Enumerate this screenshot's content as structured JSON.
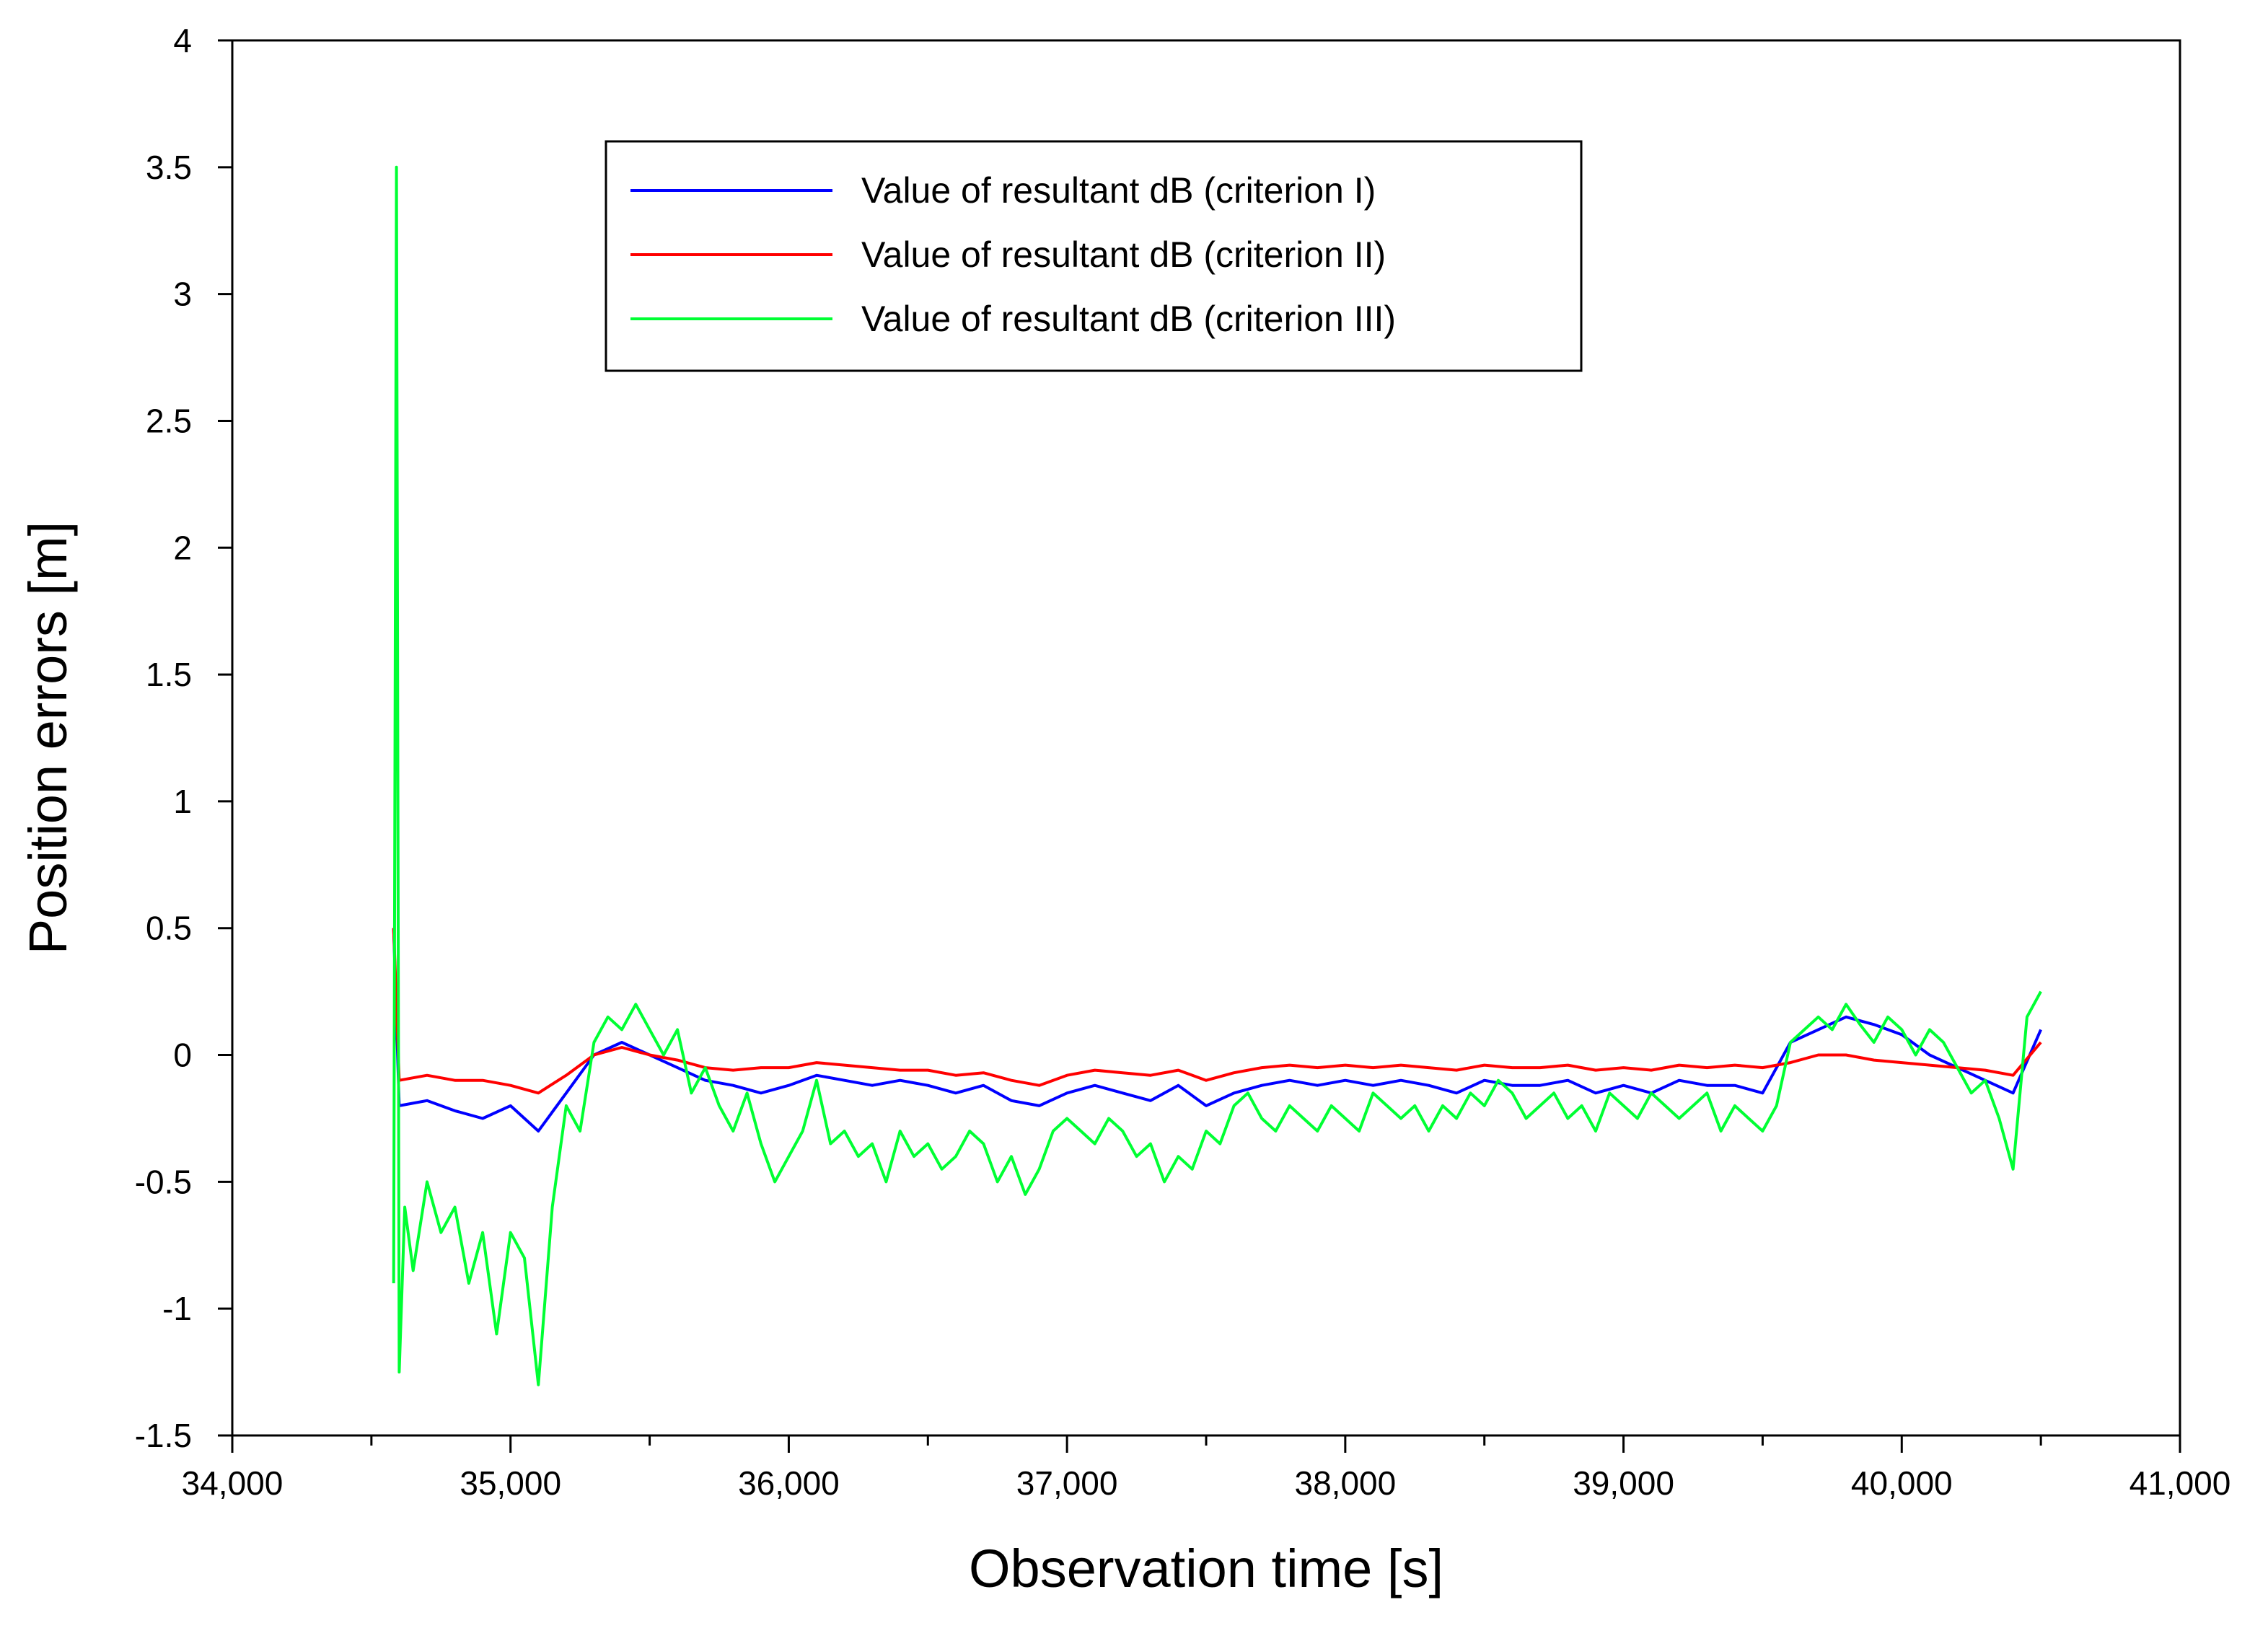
{
  "chart_data": {
    "type": "line",
    "title": "",
    "xlabel": "Observation time [s]",
    "ylabel": "Position errors [m]",
    "xlim": [
      34000,
      41000
    ],
    "ylim": [
      -1.5,
      4
    ],
    "x_ticks": [
      {
        "value": 34000,
        "label": "34,000"
      },
      {
        "value": 35000,
        "label": "35,000"
      },
      {
        "value": 36000,
        "label": "36,000"
      },
      {
        "value": 37000,
        "label": "37,000"
      },
      {
        "value": 38000,
        "label": "38,000"
      },
      {
        "value": 39000,
        "label": "39,000"
      },
      {
        "value": 40000,
        "label": "40,000"
      },
      {
        "value": 41000,
        "label": "41,000"
      }
    ],
    "y_ticks": [
      {
        "value": 4,
        "label": "4"
      },
      {
        "value": 3.5,
        "label": "3.5"
      },
      {
        "value": 3,
        "label": "3"
      },
      {
        "value": 2.5,
        "label": "2.5"
      },
      {
        "value": 2,
        "label": "2"
      },
      {
        "value": 1.5,
        "label": "1.5"
      },
      {
        "value": 1,
        "label": "1"
      },
      {
        "value": 0.5,
        "label": "0.5"
      },
      {
        "value": 0,
        "label": "0"
      },
      {
        "value": -0.5,
        "label": "-0.5"
      },
      {
        "value": -1,
        "label": "-1"
      },
      {
        "value": -1.5,
        "label": "-1.5"
      }
    ],
    "grid": false,
    "legend_position": "top-center",
    "series": [
      {
        "name": "Value of resultant dB (criterion I)",
        "color": "#0000ff",
        "x": [
          34580,
          34600,
          34700,
          34800,
          34900,
          35000,
          35100,
          35200,
          35300,
          35400,
          35500,
          35600,
          35700,
          35800,
          35900,
          36000,
          36100,
          36200,
          36300,
          36400,
          36500,
          36600,
          36700,
          36800,
          36900,
          37000,
          37100,
          37200,
          37300,
          37400,
          37500,
          37600,
          37700,
          37800,
          37900,
          38000,
          38100,
          38200,
          38300,
          38400,
          38500,
          38600,
          38700,
          38800,
          38900,
          39000,
          39100,
          39200,
          39300,
          39400,
          39500,
          39600,
          39700,
          39800,
          39900,
          40000,
          40100,
          40200,
          40300,
          40400,
          40500
        ],
        "y": [
          0.5,
          -0.2,
          -0.18,
          -0.22,
          -0.25,
          -0.2,
          -0.3,
          -0.15,
          0.0,
          0.05,
          0.0,
          -0.05,
          -0.1,
          -0.12,
          -0.15,
          -0.12,
          -0.08,
          -0.1,
          -0.12,
          -0.1,
          -0.12,
          -0.15,
          -0.12,
          -0.18,
          -0.2,
          -0.15,
          -0.12,
          -0.15,
          -0.18,
          -0.12,
          -0.2,
          -0.15,
          -0.12,
          -0.1,
          -0.12,
          -0.1,
          -0.12,
          -0.1,
          -0.12,
          -0.15,
          -0.1,
          -0.12,
          -0.12,
          -0.1,
          -0.15,
          -0.12,
          -0.15,
          -0.1,
          -0.12,
          -0.12,
          -0.15,
          0.05,
          0.1,
          0.15,
          0.12,
          0.08,
          0.0,
          -0.05,
          -0.1,
          -0.15,
          0.1
        ]
      },
      {
        "name": "Value of resultant dB (criterion II)",
        "color": "#ff0000",
        "x": [
          34580,
          34600,
          34700,
          34800,
          34900,
          35000,
          35100,
          35200,
          35300,
          35400,
          35500,
          35600,
          35700,
          35800,
          35900,
          36000,
          36100,
          36200,
          36300,
          36400,
          36500,
          36600,
          36700,
          36800,
          36900,
          37000,
          37100,
          37200,
          37300,
          37400,
          37500,
          37600,
          37700,
          37800,
          37900,
          38000,
          38100,
          38200,
          38300,
          38400,
          38500,
          38600,
          38700,
          38800,
          38900,
          39000,
          39100,
          39200,
          39300,
          39400,
          39500,
          39600,
          39700,
          39800,
          39900,
          40000,
          40100,
          40200,
          40300,
          40400,
          40500
        ],
        "y": [
          0.5,
          -0.1,
          -0.08,
          -0.1,
          -0.1,
          -0.12,
          -0.15,
          -0.08,
          0.0,
          0.03,
          0.0,
          -0.02,
          -0.05,
          -0.06,
          -0.05,
          -0.05,
          -0.03,
          -0.04,
          -0.05,
          -0.06,
          -0.06,
          -0.08,
          -0.07,
          -0.1,
          -0.12,
          -0.08,
          -0.06,
          -0.07,
          -0.08,
          -0.06,
          -0.1,
          -0.07,
          -0.05,
          -0.04,
          -0.05,
          -0.04,
          -0.05,
          -0.04,
          -0.05,
          -0.06,
          -0.04,
          -0.05,
          -0.05,
          -0.04,
          -0.06,
          -0.05,
          -0.06,
          -0.04,
          -0.05,
          -0.04,
          -0.05,
          -0.03,
          0.0,
          0.0,
          -0.02,
          -0.03,
          -0.04,
          -0.05,
          -0.06,
          -0.08,
          0.05
        ]
      },
      {
        "name": "Value of resultant dB (criterion III)",
        "color": "#00ff33",
        "x": [
          34580,
          34590,
          34600,
          34620,
          34650,
          34700,
          34750,
          34800,
          34850,
          34900,
          34950,
          35000,
          35050,
          35100,
          35150,
          35200,
          35250,
          35300,
          35350,
          35400,
          35450,
          35500,
          35550,
          35600,
          35650,
          35700,
          35750,
          35800,
          35850,
          35900,
          35950,
          36000,
          36050,
          36100,
          36150,
          36200,
          36250,
          36300,
          36350,
          36400,
          36450,
          36500,
          36550,
          36600,
          36650,
          36700,
          36750,
          36800,
          36850,
          36900,
          36950,
          37000,
          37050,
          37100,
          37150,
          37200,
          37250,
          37300,
          37350,
          37400,
          37450,
          37500,
          37550,
          37600,
          37650,
          37700,
          37750,
          37800,
          37850,
          37900,
          37950,
          38000,
          38050,
          38100,
          38150,
          38200,
          38250,
          38300,
          38350,
          38400,
          38450,
          38500,
          38550,
          38600,
          38650,
          38700,
          38750,
          38800,
          38850,
          38900,
          38950,
          39000,
          39050,
          39100,
          39150,
          39200,
          39250,
          39300,
          39350,
          39400,
          39450,
          39500,
          39550,
          39600,
          39650,
          39700,
          39750,
          39800,
          39850,
          39900,
          39950,
          40000,
          40050,
          40100,
          40150,
          40200,
          40250,
          40300,
          40350,
          40400,
          40450,
          40500
        ],
        "y": [
          -0.9,
          3.5,
          -1.25,
          -0.6,
          -0.85,
          -0.5,
          -0.7,
          -0.6,
          -0.9,
          -0.7,
          -1.1,
          -0.7,
          -0.8,
          -1.3,
          -0.6,
          -0.2,
          -0.3,
          0.05,
          0.15,
          0.1,
          0.2,
          0.1,
          0.0,
          0.1,
          -0.15,
          -0.05,
          -0.2,
          -0.3,
          -0.15,
          -0.35,
          -0.5,
          -0.4,
          -0.3,
          -0.1,
          -0.35,
          -0.3,
          -0.4,
          -0.35,
          -0.5,
          -0.3,
          -0.4,
          -0.35,
          -0.45,
          -0.4,
          -0.3,
          -0.35,
          -0.5,
          -0.4,
          -0.55,
          -0.45,
          -0.3,
          -0.25,
          -0.3,
          -0.35,
          -0.25,
          -0.3,
          -0.4,
          -0.35,
          -0.5,
          -0.4,
          -0.45,
          -0.3,
          -0.35,
          -0.2,
          -0.15,
          -0.25,
          -0.3,
          -0.2,
          -0.25,
          -0.3,
          -0.2,
          -0.25,
          -0.3,
          -0.15,
          -0.2,
          -0.25,
          -0.2,
          -0.3,
          -0.2,
          -0.25,
          -0.15,
          -0.2,
          -0.1,
          -0.15,
          -0.25,
          -0.2,
          -0.15,
          -0.25,
          -0.2,
          -0.3,
          -0.15,
          -0.2,
          -0.25,
          -0.15,
          -0.2,
          -0.25,
          -0.2,
          -0.15,
          -0.3,
          -0.2,
          -0.25,
          -0.3,
          -0.2,
          0.05,
          0.1,
          0.15,
          0.1,
          0.2,
          0.12,
          0.05,
          0.15,
          0.1,
          0.0,
          0.1,
          0.05,
          -0.05,
          -0.15,
          -0.1,
          -0.25,
          -0.45,
          0.15,
          0.25
        ]
      }
    ]
  }
}
